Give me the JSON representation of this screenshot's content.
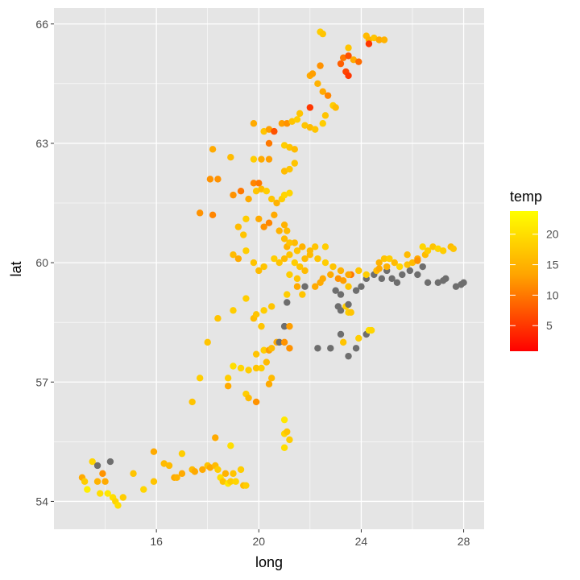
{
  "chart_data": {
    "type": "scatter",
    "xlabel": "long",
    "ylabel": "lat",
    "xlim": [
      12.0,
      28.8
    ],
    "ylim": [
      53.3,
      66.4
    ],
    "x_ticks": [
      16,
      20,
      24,
      28
    ],
    "x_tick_labels": [
      "16",
      "20",
      "24",
      "28"
    ],
    "y_ticks": [
      54,
      57,
      60,
      63,
      66
    ],
    "y_tick_labels": [
      "54",
      "57",
      "60",
      "63",
      "66"
    ],
    "x_minor": [
      14,
      18,
      22,
      26
    ],
    "y_minor": [
      55.5,
      58.5,
      61.5,
      64.5
    ],
    "grid": true,
    "panel_background": "#e5e5e5",
    "grid_color": "#ffffff",
    "na_color": "#6e6e6e",
    "legend": {
      "title": "temp",
      "placement": "right",
      "min": 0.8,
      "max": 23.8,
      "ticks": [
        5,
        10,
        15,
        20
      ],
      "tick_labels": [
        "5",
        "10",
        "15",
        "20"
      ],
      "color_low": "#ff0000",
      "color_mid": "#ffa500",
      "color_high": "#ffff00"
    },
    "points": [
      [
        13.1,
        54.6,
        14
      ],
      [
        13.2,
        54.5,
        18
      ],
      [
        13.3,
        54.3,
        22
      ],
      [
        13.5,
        55.0,
        19
      ],
      [
        13.7,
        54.9,
        null
      ],
      [
        13.7,
        54.5,
        15
      ],
      [
        13.8,
        54.2,
        20
      ],
      [
        13.9,
        54.7,
        12
      ],
      [
        14.0,
        54.5,
        14
      ],
      [
        14.2,
        55.0,
        null
      ],
      [
        14.1,
        54.2,
        21
      ],
      [
        14.3,
        54.1,
        20
      ],
      [
        14.4,
        54.0,
        19
      ],
      [
        14.5,
        53.9,
        20
      ],
      [
        14.7,
        54.1,
        18
      ],
      [
        15.1,
        54.7,
        17
      ],
      [
        15.5,
        54.3,
        19
      ],
      [
        15.9,
        54.5,
        17
      ],
      [
        15.9,
        55.25,
        14
      ],
      [
        16.3,
        54.95,
        16
      ],
      [
        16.5,
        54.9,
        16
      ],
      [
        16.7,
        54.6,
        14
      ],
      [
        16.8,
        54.6,
        15
      ],
      [
        17.0,
        54.7,
        14
      ],
      [
        17.0,
        55.2,
        18
      ],
      [
        17.4,
        54.8,
        16
      ],
      [
        17.5,
        54.75,
        14
      ],
      [
        17.8,
        54.8,
        14
      ],
      [
        18.0,
        54.9,
        17
      ],
      [
        18.1,
        54.85,
        14
      ],
      [
        18.3,
        54.9,
        16
      ],
      [
        18.3,
        55.6,
        14
      ],
      [
        18.4,
        54.8,
        18
      ],
      [
        18.5,
        54.6,
        20
      ],
      [
        18.6,
        54.5,
        17
      ],
      [
        18.7,
        54.7,
        15
      ],
      [
        18.8,
        54.45,
        21
      ],
      [
        18.9,
        54.5,
        18
      ],
      [
        19.0,
        54.7,
        17
      ],
      [
        19.1,
        54.5,
        19
      ],
      [
        19.3,
        54.8,
        18
      ],
      [
        19.4,
        54.4,
        16
      ],
      [
        19.5,
        54.4,
        18
      ],
      [
        18.9,
        55.4,
        20
      ],
      [
        19.5,
        56.7,
        18
      ],
      [
        19.6,
        56.6,
        16
      ],
      [
        19.9,
        56.5,
        12
      ],
      [
        18.8,
        56.9,
        14
      ],
      [
        18.8,
        57.1,
        18
      ],
      [
        19.0,
        57.4,
        20
      ],
      [
        19.3,
        57.35,
        19
      ],
      [
        19.6,
        57.3,
        18
      ],
      [
        19.9,
        57.35,
        17
      ],
      [
        20.1,
        57.35,
        18
      ],
      [
        20.3,
        57.5,
        16
      ],
      [
        20.5,
        57.1,
        16
      ],
      [
        20.4,
        56.95,
        14
      ],
      [
        19.9,
        57.7,
        17
      ],
      [
        20.2,
        57.8,
        18
      ],
      [
        20.4,
        57.8,
        13
      ],
      [
        20.5,
        57.85,
        16
      ],
      [
        20.7,
        58.0,
        14
      ],
      [
        20.8,
        58.0,
        null
      ],
      [
        21.0,
        58.0,
        12
      ],
      [
        21.2,
        57.85,
        12
      ],
      [
        21.0,
        58.4,
        null
      ],
      [
        21.2,
        58.4,
        13
      ],
      [
        17.4,
        56.5,
        17
      ],
      [
        17.7,
        57.1,
        18
      ],
      [
        18.0,
        58.0,
        17
      ],
      [
        18.4,
        58.6,
        17
      ],
      [
        19.0,
        58.8,
        18
      ],
      [
        19.5,
        59.1,
        18
      ],
      [
        19.8,
        58.6,
        16
      ],
      [
        19.9,
        58.7,
        17
      ],
      [
        20.1,
        58.4,
        17
      ],
      [
        20.2,
        58.8,
        18
      ],
      [
        20.5,
        58.9,
        17
      ],
      [
        21.1,
        59.2,
        18
      ],
      [
        21.1,
        59.0,
        null
      ],
      [
        21.5,
        59.4,
        14
      ],
      [
        21.7,
        59.2,
        17
      ],
      [
        21.8,
        59.4,
        null
      ],
      [
        22.2,
        59.4,
        14
      ],
      [
        22.4,
        59.5,
        14
      ],
      [
        21.0,
        56.05,
        21
      ],
      [
        21.0,
        55.7,
        19
      ],
      [
        21.1,
        55.75,
        17
      ],
      [
        21.2,
        55.55,
        18
      ],
      [
        21.0,
        55.35,
        20
      ],
      [
        22.3,
        57.85,
        null
      ],
      [
        22.8,
        57.85,
        null
      ],
      [
        23.2,
        58.2,
        null
      ],
      [
        23.3,
        58.0,
        17
      ],
      [
        23.5,
        57.65,
        null
      ],
      [
        23.8,
        57.85,
        null
      ],
      [
        23.9,
        58.1,
        18
      ],
      [
        24.2,
        58.2,
        null
      ],
      [
        24.3,
        58.3,
        20
      ],
      [
        24.4,
        58.3,
        19
      ],
      [
        23.1,
        58.9,
        null
      ],
      [
        23.2,
        58.8,
        null
      ],
      [
        23.4,
        58.9,
        18
      ],
      [
        23.5,
        58.75,
        18
      ],
      [
        23.5,
        58.95,
        null
      ],
      [
        23.6,
        58.75,
        17
      ],
      [
        23.0,
        59.3,
        null
      ],
      [
        23.2,
        59.2,
        null
      ],
      [
        23.5,
        59.4,
        17
      ],
      [
        23.8,
        59.3,
        null
      ],
      [
        24.0,
        59.4,
        null
      ],
      [
        24.2,
        59.6,
        null
      ],
      [
        24.5,
        59.7,
        null
      ],
      [
        24.8,
        59.6,
        null
      ],
      [
        25.0,
        59.8,
        null
      ],
      [
        25.2,
        59.6,
        null
      ],
      [
        25.4,
        59.5,
        null
      ],
      [
        25.6,
        59.7,
        null
      ],
      [
        25.9,
        59.8,
        null
      ],
      [
        26.2,
        59.7,
        null
      ],
      [
        26.4,
        59.9,
        null
      ],
      [
        26.6,
        59.5,
        null
      ],
      [
        27.0,
        59.5,
        null
      ],
      [
        27.2,
        59.55,
        null
      ],
      [
        27.3,
        59.6,
        null
      ],
      [
        27.7,
        59.4,
        null
      ],
      [
        27.9,
        59.45,
        null
      ],
      [
        28.0,
        59.5,
        null
      ],
      [
        22.5,
        59.6,
        14
      ],
      [
        22.8,
        59.7,
        14
      ],
      [
        23.1,
        59.6,
        12
      ],
      [
        23.3,
        59.55,
        13
      ],
      [
        23.6,
        59.7,
        10
      ],
      [
        23.9,
        59.8,
        17
      ],
      [
        24.2,
        59.7,
        18
      ],
      [
        24.6,
        59.8,
        16
      ],
      [
        24.7,
        60.0,
        15
      ],
      [
        24.9,
        60.1,
        17
      ],
      [
        25.1,
        60.1,
        18
      ],
      [
        25.3,
        60.0,
        16
      ],
      [
        25.5,
        59.9,
        19
      ],
      [
        25.8,
        59.95,
        17
      ],
      [
        26.0,
        60.0,
        16
      ],
      [
        26.2,
        60.1,
        14
      ],
      [
        26.5,
        60.2,
        16
      ],
      [
        26.6,
        60.3,
        18
      ],
      [
        26.8,
        60.4,
        17
      ],
      [
        27.0,
        60.35,
        19
      ],
      [
        27.2,
        60.3,
        18
      ],
      [
        27.5,
        60.4,
        16
      ],
      [
        27.6,
        60.35,
        17
      ],
      [
        26.4,
        60.4,
        19
      ],
      [
        25.8,
        60.2,
        16
      ],
      [
        25.0,
        59.9,
        15
      ],
      [
        24.7,
        59.85,
        14
      ],
      [
        26.2,
        60.05,
        12
      ],
      [
        21.0,
        60.1,
        16
      ],
      [
        21.2,
        60.2,
        17
      ],
      [
        21.4,
        60.0,
        18
      ],
      [
        21.6,
        59.9,
        17
      ],
      [
        21.8,
        60.1,
        16
      ],
      [
        22.0,
        60.2,
        16
      ],
      [
        22.3,
        60.1,
        17
      ],
      [
        22.6,
        60.0,
        18
      ],
      [
        22.9,
        59.9,
        17
      ],
      [
        23.2,
        59.8,
        15
      ],
      [
        23.5,
        59.7,
        14
      ],
      [
        21.1,
        60.4,
        15
      ],
      [
        21.4,
        60.5,
        16
      ],
      [
        21.5,
        60.3,
        17
      ],
      [
        21.7,
        60.4,
        15
      ],
      [
        22.0,
        60.3,
        16
      ],
      [
        22.2,
        60.4,
        17
      ],
      [
        22.6,
        60.4,
        18
      ],
      [
        19.0,
        60.2,
        16
      ],
      [
        19.2,
        60.1,
        14
      ],
      [
        19.5,
        60.3,
        18
      ],
      [
        19.8,
        60.0,
        17
      ],
      [
        20.0,
        59.8,
        16
      ],
      [
        20.2,
        59.9,
        17
      ],
      [
        20.6,
        60.1,
        18
      ],
      [
        20.8,
        60.0,
        17
      ],
      [
        21.2,
        59.7,
        18
      ],
      [
        21.5,
        59.6,
        17
      ],
      [
        21.8,
        59.8,
        16
      ],
      [
        20.0,
        61.1,
        14
      ],
      [
        20.2,
        60.9,
        12
      ],
      [
        20.4,
        61.0,
        11
      ],
      [
        20.6,
        61.2,
        14
      ],
      [
        20.8,
        60.8,
        15
      ],
      [
        21.0,
        60.6,
        16
      ],
      [
        21.2,
        60.5,
        17
      ],
      [
        21.0,
        60.95,
        15
      ],
      [
        21.1,
        60.8,
        16
      ],
      [
        19.2,
        60.9,
        16
      ],
      [
        19.4,
        60.7,
        17
      ],
      [
        19.5,
        61.1,
        18
      ],
      [
        19.0,
        61.7,
        12
      ],
      [
        19.6,
        61.6,
        14
      ],
      [
        19.9,
        61.8,
        17
      ],
      [
        20.1,
        61.85,
        16
      ],
      [
        20.3,
        61.8,
        18
      ],
      [
        20.5,
        61.6,
        17
      ],
      [
        20.7,
        61.5,
        15
      ],
      [
        20.9,
        61.6,
        18
      ],
      [
        21.0,
        61.7,
        19
      ],
      [
        21.2,
        61.75,
        19
      ],
      [
        19.3,
        61.8,
        10
      ],
      [
        19.8,
        62.0,
        11
      ],
      [
        20.0,
        62.0,
        10
      ],
      [
        18.2,
        61.2,
        11
      ],
      [
        17.7,
        61.25,
        12
      ],
      [
        18.1,
        62.1,
        12
      ],
      [
        18.4,
        62.1,
        12
      ],
      [
        18.9,
        62.65,
        16
      ],
      [
        18.2,
        62.85,
        14
      ],
      [
        19.8,
        62.6,
        18
      ],
      [
        20.1,
        62.6,
        14
      ],
      [
        20.4,
        62.6,
        13
      ],
      [
        21.0,
        62.3,
        16
      ],
      [
        21.2,
        62.35,
        17
      ],
      [
        21.4,
        62.5,
        17
      ],
      [
        21.0,
        62.95,
        18
      ],
      [
        21.2,
        62.9,
        17
      ],
      [
        21.4,
        62.85,
        16
      ],
      [
        19.8,
        63.5,
        14
      ],
      [
        20.2,
        63.3,
        17
      ],
      [
        20.4,
        63.35,
        13
      ],
      [
        20.4,
        63.0,
        10
      ],
      [
        20.9,
        63.5,
        13
      ],
      [
        21.1,
        63.5,
        12
      ],
      [
        21.3,
        63.55,
        17
      ],
      [
        21.5,
        63.6,
        18
      ],
      [
        21.6,
        63.75,
        17
      ],
      [
        21.8,
        63.45,
        17
      ],
      [
        22.0,
        63.4,
        16
      ],
      [
        22.2,
        63.35,
        17
      ],
      [
        22.5,
        63.5,
        18
      ],
      [
        22.6,
        63.7,
        17
      ],
      [
        22.9,
        63.95,
        18
      ],
      [
        23.0,
        63.9,
        16
      ],
      [
        22.0,
        63.9,
        5
      ],
      [
        22.5,
        64.3,
        14
      ],
      [
        22.7,
        64.2,
        11
      ],
      [
        22.3,
        64.5,
        15
      ],
      [
        22.0,
        64.7,
        14
      ],
      [
        22.1,
        64.75,
        13
      ],
      [
        22.4,
        64.95,
        12
      ],
      [
        23.2,
        65.0,
        8
      ],
      [
        23.3,
        65.15,
        10
      ],
      [
        23.4,
        64.8,
        6
      ],
      [
        23.5,
        64.7,
        5
      ],
      [
        23.5,
        65.2,
        7
      ],
      [
        23.7,
        65.1,
        14
      ],
      [
        23.9,
        65.05,
        9
      ],
      [
        23.5,
        65.4,
        17
      ],
      [
        22.4,
        65.8,
        18
      ],
      [
        22.5,
        65.75,
        17
      ],
      [
        24.2,
        65.7,
        16
      ],
      [
        24.3,
        65.6,
        15
      ],
      [
        24.5,
        65.65,
        17
      ],
      [
        24.7,
        65.6,
        14
      ],
      [
        24.9,
        65.6,
        15
      ],
      [
        24.3,
        65.5,
        5
      ],
      [
        20.6,
        63.3,
        7
      ]
    ]
  }
}
